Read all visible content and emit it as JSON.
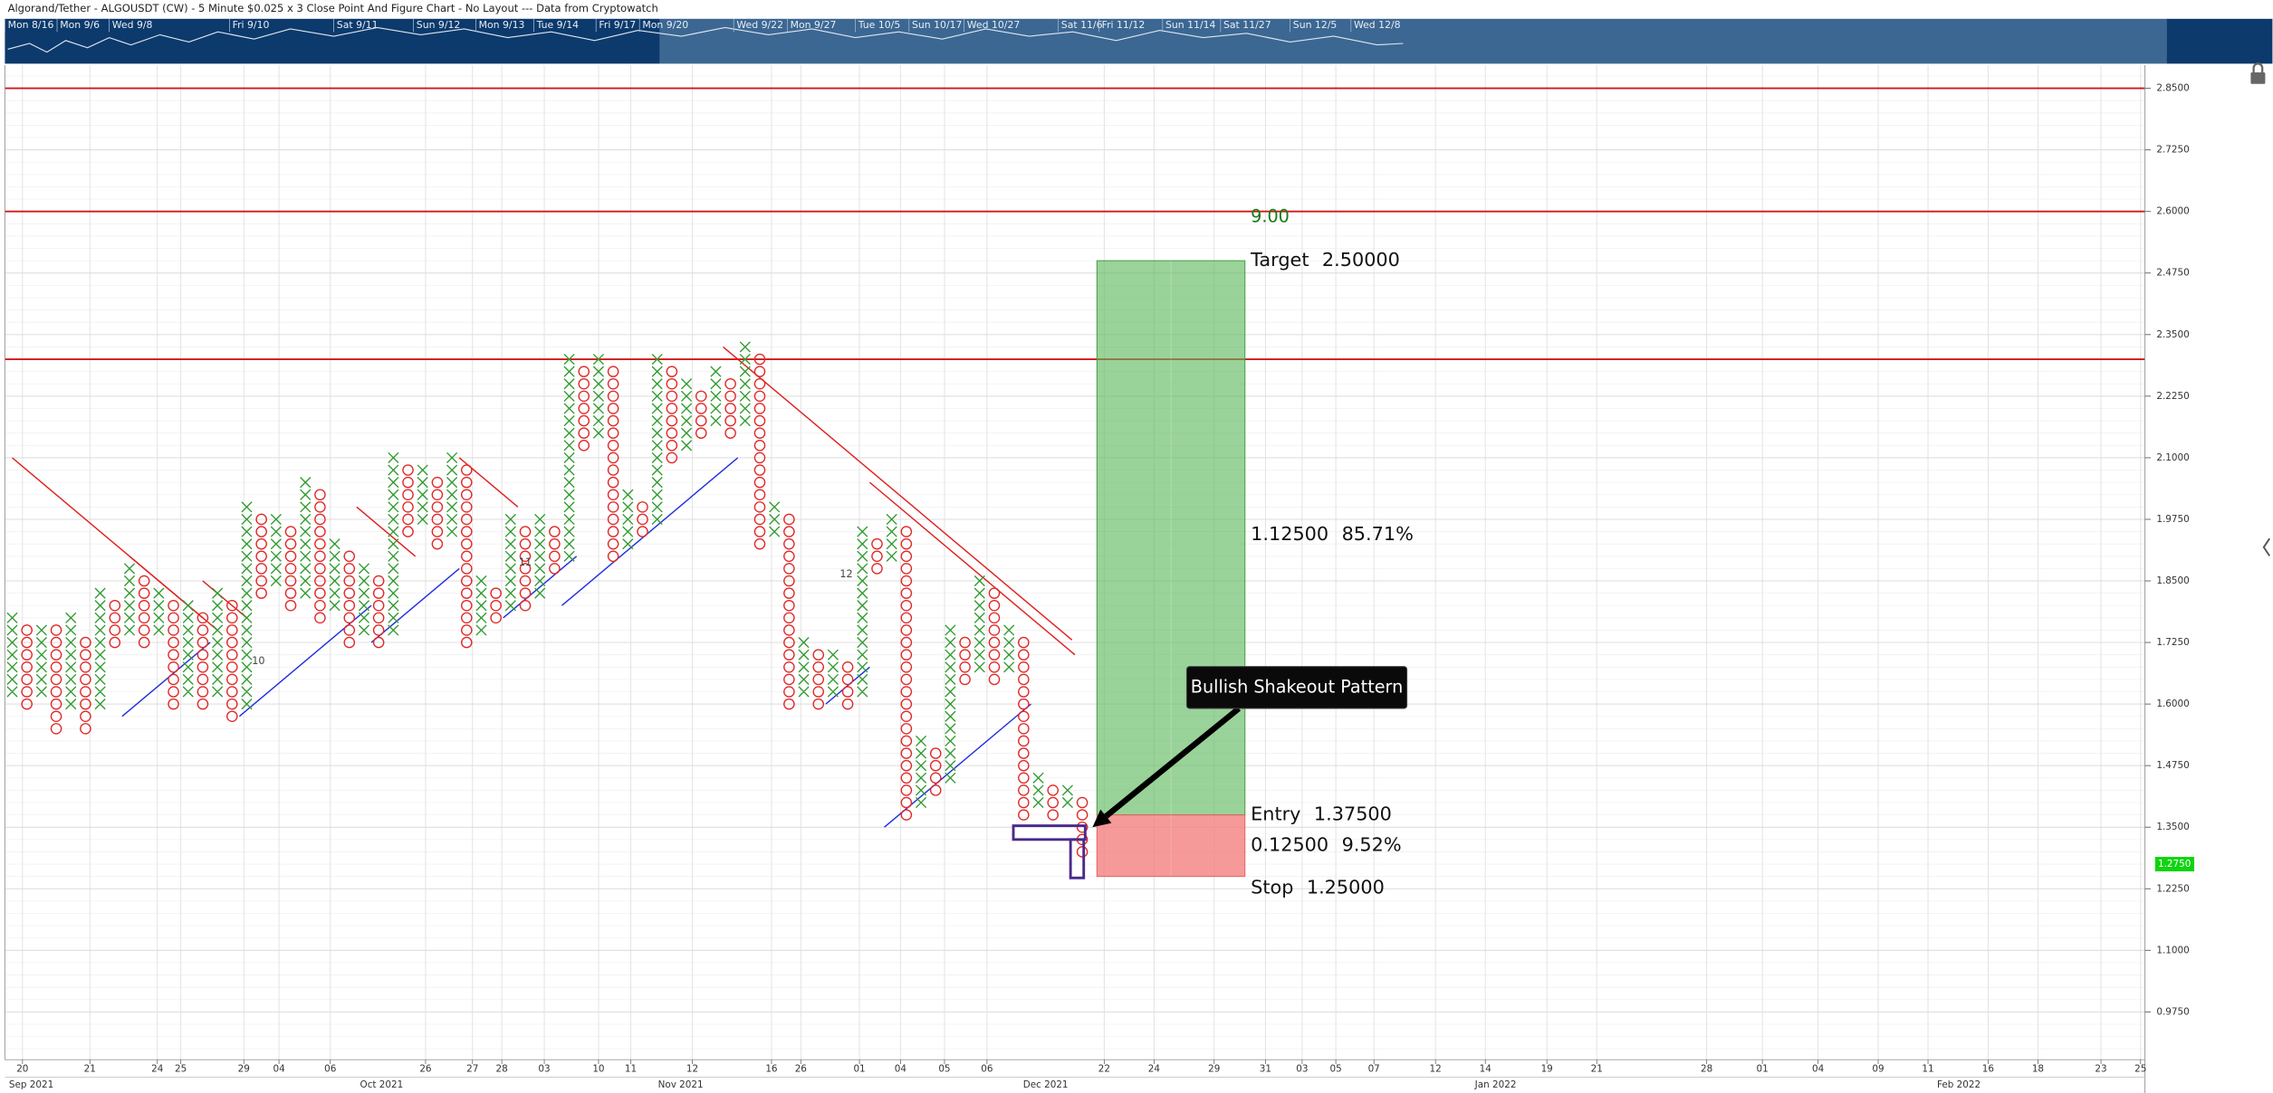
{
  "chart_data": {
    "type": "pnf",
    "title": "Algorand/Tether - ALGOUSDT (CW) - 5 Minute $0.025 x 3 Close Point And Figure Chart - No Layout --- Data from Cryptowatch",
    "navigator": [
      "Mon 8/16",
      "Mon 9/6",
      "Wed 9/8",
      "Fri 9/10",
      "Sat 9/11",
      "Sun 9/12",
      "Mon 9/13",
      "Tue 9/14",
      "Fri 9/17",
      "Mon 9/20",
      "Wed 9/22",
      "Mon 9/27",
      "Tue 10/5",
      "Sun 10/17",
      "Wed 10/27",
      "Sat 11/6",
      "Fri 11/12",
      "Sun 11/14",
      "Sat 11/27",
      "Sun 12/5",
      "Wed 12/8"
    ],
    "box_size": 0.025,
    "x_color": "#2e9b2e",
    "o_color": "#e02828",
    "columns": [
      {
        "type": "X",
        "low": 1.625,
        "high": 1.775
      },
      {
        "type": "O",
        "low": 1.6,
        "high": 1.75
      },
      {
        "type": "X",
        "low": 1.625,
        "high": 1.75
      },
      {
        "type": "O",
        "low": 1.55,
        "high": 1.75
      },
      {
        "type": "X",
        "low": 1.6,
        "high": 1.775
      },
      {
        "type": "O",
        "low": 1.55,
        "high": 1.725
      },
      {
        "type": "X",
        "low": 1.6,
        "high": 1.825
      },
      {
        "type": "O",
        "low": 1.725,
        "high": 1.8
      },
      {
        "type": "X",
        "low": 1.75,
        "high": 1.875
      },
      {
        "type": "O",
        "low": 1.725,
        "high": 1.85
      },
      {
        "type": "X",
        "low": 1.75,
        "high": 1.825
      },
      {
        "type": "O",
        "low": 1.6,
        "high": 1.8
      },
      {
        "type": "X",
        "low": 1.625,
        "high": 1.8
      },
      {
        "type": "O",
        "low": 1.6,
        "high": 1.775
      },
      {
        "type": "X",
        "low": 1.625,
        "high": 1.825
      },
      {
        "type": "O",
        "low": 1.575,
        "high": 1.8
      },
      {
        "type": "X",
        "low": 1.6,
        "high": 2.0
      },
      {
        "type": "O",
        "low": 1.825,
        "high": 1.975
      },
      {
        "type": "X",
        "low": 1.85,
        "high": 1.975
      },
      {
        "type": "O",
        "low": 1.8,
        "high": 1.95
      },
      {
        "type": "X",
        "low": 1.825,
        "high": 2.05
      },
      {
        "type": "O",
        "low": 1.775,
        "high": 2.025
      },
      {
        "type": "X",
        "low": 1.8,
        "high": 1.925
      },
      {
        "type": "O",
        "low": 1.725,
        "high": 1.9
      },
      {
        "type": "X",
        "low": 1.75,
        "high": 1.875
      },
      {
        "type": "O",
        "low": 1.725,
        "high": 1.85
      },
      {
        "type": "X",
        "low": 1.75,
        "high": 2.1
      },
      {
        "type": "O",
        "low": 1.95,
        "high": 2.075
      },
      {
        "type": "X",
        "low": 1.975,
        "high": 2.075
      },
      {
        "type": "O",
        "low": 1.925,
        "high": 2.05
      },
      {
        "type": "X",
        "low": 1.95,
        "high": 2.1
      },
      {
        "type": "O",
        "low": 1.725,
        "high": 2.075
      },
      {
        "type": "X",
        "low": 1.75,
        "high": 1.85
      },
      {
        "type": "O",
        "low": 1.775,
        "high": 1.825
      },
      {
        "type": "X",
        "low": 1.8,
        "high": 1.975
      },
      {
        "type": "O",
        "low": 1.8,
        "high": 1.95
      },
      {
        "type": "X",
        "low": 1.825,
        "high": 1.975
      },
      {
        "type": "O",
        "low": 1.875,
        "high": 1.95
      },
      {
        "type": "X",
        "low": 1.9,
        "high": 2.3
      },
      {
        "type": "O",
        "low": 2.125,
        "high": 2.275
      },
      {
        "type": "X",
        "low": 2.15,
        "high": 2.3
      },
      {
        "type": "O",
        "low": 1.9,
        "high": 2.275
      },
      {
        "type": "X",
        "low": 1.925,
        "high": 2.025
      },
      {
        "type": "O",
        "low": 1.95,
        "high": 2.0
      },
      {
        "type": "X",
        "low": 1.975,
        "high": 2.3
      },
      {
        "type": "O",
        "low": 2.1,
        "high": 2.275
      },
      {
        "type": "X",
        "low": 2.125,
        "high": 2.25
      },
      {
        "type": "O",
        "low": 2.15,
        "high": 2.225
      },
      {
        "type": "X",
        "low": 2.175,
        "high": 2.275
      },
      {
        "type": "O",
        "low": 2.15,
        "high": 2.25
      },
      {
        "type": "X",
        "low": 2.175,
        "high": 2.325
      },
      {
        "type": "O",
        "low": 1.925,
        "high": 2.3
      },
      {
        "type": "X",
        "low": 1.95,
        "high": 2.0
      },
      {
        "type": "O",
        "low": 1.6,
        "high": 1.975
      },
      {
        "type": "X",
        "low": 1.625,
        "high": 1.725
      },
      {
        "type": "O",
        "low": 1.6,
        "high": 1.7
      },
      {
        "type": "X",
        "low": 1.625,
        "high": 1.7
      },
      {
        "type": "O",
        "low": 1.6,
        "high": 1.675
      },
      {
        "type": "X",
        "low": 1.625,
        "high": 1.95
      },
      {
        "type": "O",
        "low": 1.875,
        "high": 1.925
      },
      {
        "type": "X",
        "low": 1.9,
        "high": 1.975
      },
      {
        "type": "O",
        "low": 1.375,
        "high": 1.95
      },
      {
        "type": "X",
        "low": 1.4,
        "high": 1.525
      },
      {
        "type": "O",
        "low": 1.425,
        "high": 1.5
      },
      {
        "type": "X",
        "low": 1.45,
        "high": 1.75
      },
      {
        "type": "O",
        "low": 1.65,
        "high": 1.725
      },
      {
        "type": "X",
        "low": 1.675,
        "high": 1.85
      },
      {
        "type": "O",
        "low": 1.65,
        "high": 1.825
      },
      {
        "type": "X",
        "low": 1.675,
        "high": 1.75
      },
      {
        "type": "O",
        "low": 1.375,
        "high": 1.725
      },
      {
        "type": "X",
        "low": 1.4,
        "high": 1.45
      },
      {
        "type": "O",
        "low": 1.375,
        "high": 1.425
      },
      {
        "type": "X",
        "low": 1.4,
        "high": 1.425
      },
      {
        "type": "O",
        "low": 1.3,
        "high": 1.4
      }
    ],
    "column_labels": [
      {
        "text": "10",
        "at": [
          17.3,
          1.687
        ]
      },
      {
        "text": "11",
        "at": [
          35.5,
          1.887
        ]
      },
      {
        "text": "12",
        "at": [
          57.4,
          1.863
        ]
      }
    ],
    "trendlines": [
      {
        "color": "#e02020",
        "from": [
          0.5,
          2.1
        ],
        "to": [
          13.5,
          1.775
        ]
      },
      {
        "color": "#e02020",
        "from": [
          8.5,
          1.9
        ],
        "to": [
          14.5,
          1.75
        ]
      },
      {
        "color": "#e02020",
        "from": [
          13.5,
          1.85
        ],
        "to": [
          16.5,
          1.775
        ]
      },
      {
        "color": "#e02020",
        "from": [
          24,
          2.0
        ],
        "to": [
          28,
          1.9
        ]
      },
      {
        "color": "#e02020",
        "from": [
          31,
          2.1
        ],
        "to": [
          35,
          2.0
        ]
      },
      {
        "color": "#e02020",
        "from": [
          49,
          2.325
        ],
        "to": [
          72.8,
          1.73
        ]
      },
      {
        "color": "#e02020",
        "from": [
          59,
          2.05
        ],
        "to": [
          73,
          1.7
        ]
      },
      {
        "color": "#2030e0",
        "from": [
          8,
          1.575
        ],
        "to": [
          14,
          1.725
        ]
      },
      {
        "color": "#2030e0",
        "from": [
          16,
          1.575
        ],
        "to": [
          25,
          1.8
        ]
      },
      {
        "color": "#2030e0",
        "from": [
          25,
          1.725
        ],
        "to": [
          31,
          1.875
        ]
      },
      {
        "color": "#2030e0",
        "from": [
          34,
          1.775
        ],
        "to": [
          39,
          1.9
        ]
      },
      {
        "color": "#2030e0",
        "from": [
          38,
          1.8
        ],
        "to": [
          50,
          2.1
        ]
      },
      {
        "color": "#2030e0",
        "from": [
          56,
          1.6
        ],
        "to": [
          59,
          1.675
        ]
      },
      {
        "color": "#2030e0",
        "from": [
          60,
          1.35
        ],
        "to": [
          70,
          1.6
        ]
      }
    ],
    "hlines": [
      2.85,
      2.6,
      2.3
    ],
    "hline_color": "#d01818",
    "position": {
      "x": [
        74.5,
        84.6
      ],
      "target": 2.5,
      "entry": 1.375,
      "stop": 1.25,
      "target_label": "Target",
      "entry_label": "Entry",
      "stop_label": "Stop",
      "value_labels": {
        "target": "2.50000",
        "entry": "1.37500",
        "stop": "1.25000"
      },
      "ratio": "9.00",
      "reward": [
        "1.12500",
        "85.71%"
      ],
      "risk": [
        "0.12500",
        "9.52%"
      ]
    },
    "highlight_boxes": [
      {
        "x": [
          68.8,
          73.7
        ],
        "y": [
          1.325,
          1.353
        ]
      },
      {
        "x": [
          72.7,
          73.6
        ],
        "y": [
          1.247,
          1.325
        ]
      }
    ],
    "callout": {
      "text": "Bullish Shakeout Pattern",
      "at": [
        74.2,
        1.35
      ]
    },
    "last_price": {
      "value": 1.275,
      "label": "1.2750"
    },
    "xlim": [
      0,
      146
    ],
    "ylim": [
      0.878,
      2.897
    ],
    "yticks": [
      {
        "value": 2.85,
        "label": "2.8500"
      },
      {
        "value": 2.725,
        "label": "2.7250"
      },
      {
        "value": 2.6,
        "label": "2.6000"
      },
      {
        "value": 2.475,
        "label": "2.4750"
      },
      {
        "value": 2.35,
        "label": "2.3500"
      },
      {
        "value": 2.225,
        "label": "2.2250"
      },
      {
        "value": 2.1,
        "label": "2.1000"
      },
      {
        "value": 1.975,
        "label": "1.9750"
      },
      {
        "value": 1.85,
        "label": "1.8500"
      },
      {
        "value": 1.725,
        "label": "1.7250"
      },
      {
        "value": 1.6,
        "label": "1.6000"
      },
      {
        "value": 1.475,
        "label": "1.4750"
      },
      {
        "value": 1.35,
        "label": "1.3500"
      },
      {
        "value": 1.225,
        "label": "1.2250"
      },
      {
        "value": 1.1,
        "label": "1.1000"
      },
      {
        "value": 0.975,
        "label": "0.9750"
      }
    ],
    "xticks": [
      {
        "value": 1.2,
        "label": "20"
      },
      {
        "value": 5.8,
        "label": "21"
      },
      {
        "value": 10.4,
        "label": "24"
      },
      {
        "value": 12.0,
        "label": "25"
      },
      {
        "value": 16.3,
        "label": "29"
      },
      {
        "value": 18.7,
        "label": "04"
      },
      {
        "value": 22.2,
        "label": "06"
      },
      {
        "value": 28.7,
        "label": "26"
      },
      {
        "value": 31.9,
        "label": "27"
      },
      {
        "value": 33.9,
        "label": "28"
      },
      {
        "value": 36.8,
        "label": "03"
      },
      {
        "value": 40.5,
        "label": "10"
      },
      {
        "value": 42.7,
        "label": "11"
      },
      {
        "value": 46.9,
        "label": "12"
      },
      {
        "value": 52.3,
        "label": "16"
      },
      {
        "value": 54.3,
        "label": "26"
      },
      {
        "value": 58.3,
        "label": "01"
      },
      {
        "value": 61.1,
        "label": "04"
      },
      {
        "value": 64.1,
        "label": "05"
      },
      {
        "value": 67.0,
        "label": "06"
      },
      {
        "value": 75.0,
        "label": "22"
      },
      {
        "value": 78.4,
        "label": "24"
      },
      {
        "value": 82.5,
        "label": "29"
      },
      {
        "value": 86.0,
        "label": "31"
      },
      {
        "value": 88.5,
        "label": "03"
      },
      {
        "value": 90.8,
        "label": "05"
      },
      {
        "value": 93.4,
        "label": "07"
      },
      {
        "value": 97.6,
        "label": "12"
      },
      {
        "value": 101.0,
        "label": "14"
      },
      {
        "value": 105.2,
        "label": "19"
      },
      {
        "value": 108.6,
        "label": "21"
      },
      {
        "value": 116.1,
        "label": "28"
      },
      {
        "value": 119.9,
        "label": "01"
      },
      {
        "value": 123.7,
        "label": "04"
      },
      {
        "value": 127.8,
        "label": "09"
      },
      {
        "value": 131.2,
        "label": "11"
      },
      {
        "value": 135.3,
        "label": "16"
      },
      {
        "value": 138.7,
        "label": "18"
      },
      {
        "value": 143.0,
        "label": "23"
      },
      {
        "value": 145.7,
        "label": "25"
      }
    ],
    "month_ticks": [
      {
        "value": 1.8,
        "label": "Sep 2021"
      },
      {
        "value": 25.7,
        "label": "Oct 2021"
      },
      {
        "value": 46.1,
        "label": "Nov 2021"
      },
      {
        "value": 71.0,
        "label": "Dec 2021"
      },
      {
        "value": 101.7,
        "label": "Jan 2022"
      },
      {
        "value": 133.3,
        "label": "Feb 2022"
      }
    ],
    "grid": true
  }
}
